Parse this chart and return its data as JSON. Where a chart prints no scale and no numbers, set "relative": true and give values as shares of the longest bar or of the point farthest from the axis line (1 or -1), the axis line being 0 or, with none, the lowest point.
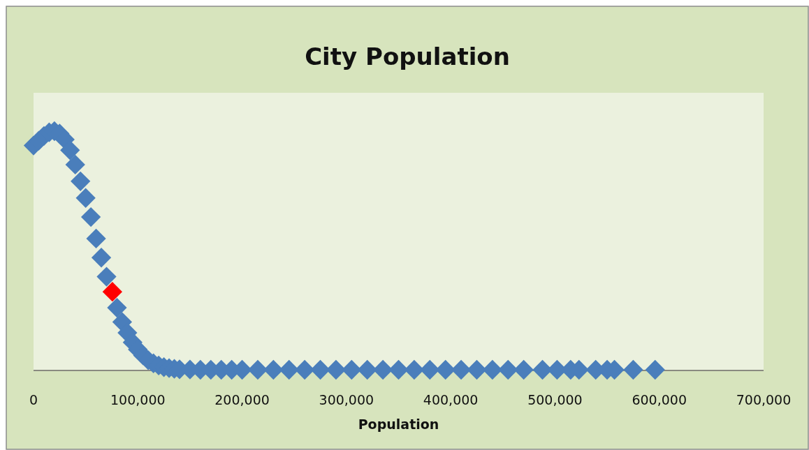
{
  "chart_data": {
    "type": "scatter",
    "title": "City Population",
    "xlabel": "Population",
    "relative": true,
    "marker": "diamond",
    "xlim": [
      0,
      700000
    ],
    "xticks": [
      0,
      {
        "value": 100000,
        "label": "100,000"
      },
      {
        "value": 200000,
        "label": "200,000"
      },
      {
        "value": 300000,
        "label": "300,000"
      },
      {
        "value": 400000,
        "label": "400,000"
      },
      {
        "value": 500000,
        "label": "500,000"
      },
      {
        "value": 600000,
        "label": "600,000"
      },
      {
        "value": 700000,
        "label": "700,000"
      }
    ],
    "tick_labels": "x",
    "grid": false,
    "series": [
      {
        "color": "#4a7ebb",
        "x": [
          0,
          5000,
          10000,
          15000,
          20000,
          25000,
          30000,
          35000,
          40000,
          45000,
          50000,
          55000,
          60000,
          65000,
          70000,
          80000,
          85000,
          90000,
          95000,
          100000,
          105000,
          110000,
          115000,
          120000,
          125000,
          130000,
          135000,
          140000,
          150000,
          160000,
          170000,
          180000,
          190000,
          200000,
          215000,
          230000,
          245000,
          260000,
          275000,
          290000,
          305000,
          320000,
          335000,
          350000,
          365000,
          380000,
          395000,
          410000,
          425000,
          440000,
          455000,
          470000,
          488000,
          502000,
          515000,
          523000,
          539000,
          550000,
          557000,
          575000,
          596000
        ],
        "values": [
          0.94,
          0.96,
          0.98,
          0.995,
          1,
          0.99,
          0.965,
          0.92,
          0.86,
          0.79,
          0.72,
          0.64,
          0.55,
          0.47,
          0.39,
          0.26,
          0.2,
          0.155,
          0.115,
          0.085,
          0.06,
          0.04,
          0.027,
          0.018,
          0.011,
          0.007,
          0.004,
          0.002,
          0.001,
          0,
          0,
          0,
          0,
          0,
          0,
          0,
          0,
          0,
          0,
          0,
          0,
          0,
          0,
          0,
          0,
          0,
          0,
          0,
          0,
          0,
          0,
          0,
          0,
          0,
          0,
          0,
          0,
          0,
          0,
          0,
          0
        ]
      },
      {
        "color": "#ff0000",
        "x": [
          75600
        ],
        "values": [
          0.327
        ]
      }
    ]
  }
}
